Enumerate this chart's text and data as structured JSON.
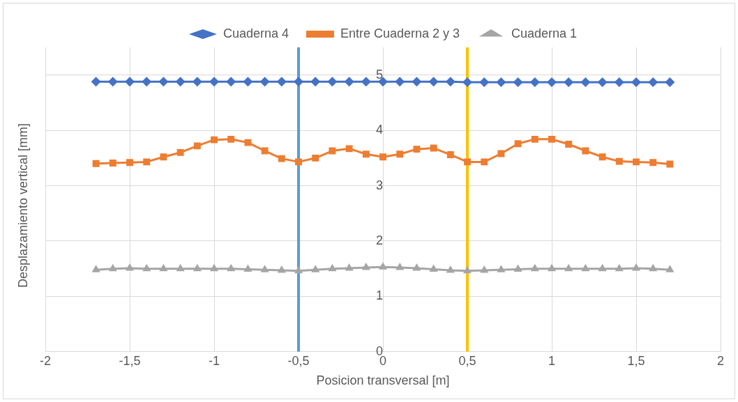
{
  "chart_data": {
    "type": "line",
    "xlabel": "Posicion transversal [m]",
    "ylabel": "Desplazamiento vertical [mm]",
    "x": [
      -1.7,
      -1.6,
      -1.5,
      -1.4,
      -1.3,
      -1.2,
      -1.1,
      -1.0,
      -0.9,
      -0.8,
      -0.7,
      -0.6,
      -0.5,
      -0.4,
      -0.3,
      -0.2,
      -0.1,
      0,
      0.1,
      0.2,
      0.3,
      0.4,
      0.5,
      0.6,
      0.7,
      0.8,
      0.9,
      1.0,
      1.1,
      1.2,
      1.3,
      1.4,
      1.5,
      1.6,
      1.7
    ],
    "series": [
      {
        "name": "Cuaderna 4",
        "color": "#4472c4",
        "marker": "diamond",
        "values": [
          4.88,
          4.88,
          4.88,
          4.88,
          4.88,
          4.88,
          4.88,
          4.88,
          4.88,
          4.88,
          4.88,
          4.88,
          4.88,
          4.88,
          4.88,
          4.88,
          4.88,
          4.88,
          4.88,
          4.88,
          4.88,
          4.88,
          4.87,
          4.87,
          4.87,
          4.87,
          4.87,
          4.87,
          4.87,
          4.87,
          4.87,
          4.87,
          4.87,
          4.87,
          4.87
        ]
      },
      {
        "name": "Entre Cuaderna 2 y 3",
        "color": "#ed7d31",
        "marker": "square",
        "values": [
          3.4,
          3.41,
          3.42,
          3.43,
          3.52,
          3.6,
          3.72,
          3.83,
          3.84,
          3.78,
          3.63,
          3.49,
          3.43,
          3.5,
          3.63,
          3.67,
          3.57,
          3.52,
          3.57,
          3.66,
          3.68,
          3.56,
          3.43,
          3.43,
          3.58,
          3.76,
          3.84,
          3.84,
          3.75,
          3.63,
          3.52,
          3.44,
          3.43,
          3.42,
          3.39
        ]
      },
      {
        "name": "Cuaderna 1",
        "color": "#a5a5a5",
        "marker": "triangle",
        "values": [
          1.48,
          1.5,
          1.51,
          1.5,
          1.5,
          1.5,
          1.5,
          1.5,
          1.5,
          1.49,
          1.48,
          1.47,
          1.46,
          1.48,
          1.5,
          1.51,
          1.52,
          1.53,
          1.52,
          1.51,
          1.49,
          1.47,
          1.46,
          1.47,
          1.48,
          1.49,
          1.5,
          1.5,
          1.5,
          1.5,
          1.5,
          1.5,
          1.51,
          1.5,
          1.48
        ]
      }
    ],
    "xlim": [
      -2,
      2
    ],
    "xticks": [
      -2,
      {
        "value": -1.5,
        "label": "-1,5"
      },
      -1,
      {
        "value": -0.5,
        "label": "-0,5"
      },
      0,
      {
        "value": 0.5,
        "label": "0,5"
      },
      1,
      {
        "value": 1.5,
        "label": "1,5"
      },
      2
    ],
    "ylim": [
      0,
      5.5
    ],
    "yticks": [
      0,
      1,
      2,
      3,
      4,
      5
    ],
    "ref_lines": [
      {
        "axis": "x",
        "value": -0.5,
        "color": "#5b9bd5"
      },
      {
        "axis": "x",
        "value": 0.5,
        "color": "#ffc000"
      }
    ],
    "grid": true,
    "legend": "top"
  }
}
